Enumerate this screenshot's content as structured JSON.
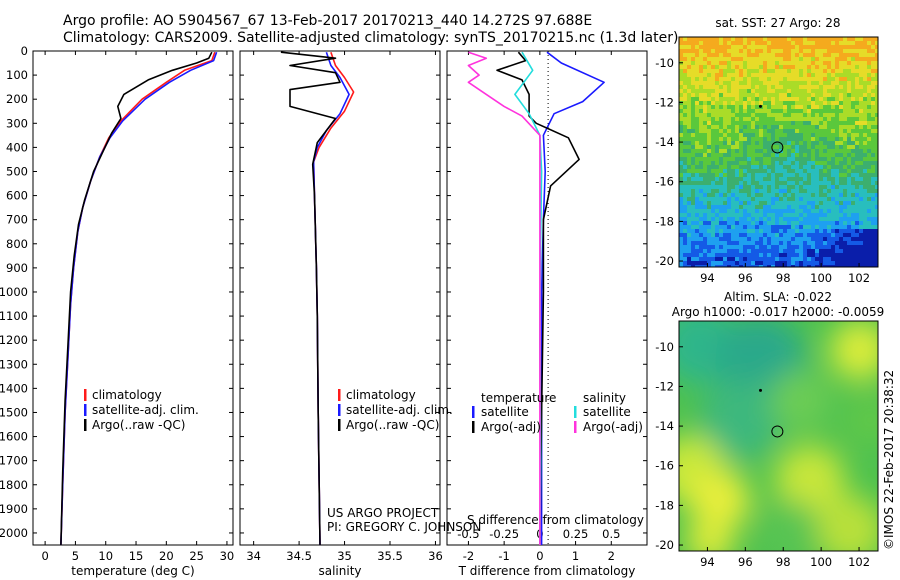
{
  "header": {
    "line1": "Argo profile: AO 5904567_67 13-Feb-2017 20170213_440 14.272S 97.688E",
    "line2": "Climatology: CARS2009. Satellite-adjusted climatology: synTS_20170215.nc (1.3d later)"
  },
  "credit": {
    "project": "US ARGO PROJECT",
    "pi": "PI: GREGORY C. JOHNSON",
    "imos": "©IMOS 22-Feb-2017 20:38:32"
  },
  "colors": {
    "climatology": "#ff1a1a",
    "satellite": "#1a1aff",
    "argo": "#000000",
    "sal_satellite": "#22dddd",
    "sal_argo": "#ff33dd"
  },
  "chart_data": [
    {
      "type": "line",
      "title": "",
      "xlabel": "temperature (deg C)",
      "ylabel": "",
      "xlim": [
        -2,
        31
      ],
      "ylim": [
        2050,
        0
      ],
      "xticks": [
        0,
        5,
        10,
        15,
        20,
        25,
        30
      ],
      "yticks": [
        0,
        100,
        200,
        300,
        400,
        500,
        600,
        700,
        800,
        900,
        1000,
        1100,
        1200,
        1300,
        1400,
        1500,
        1600,
        1700,
        1800,
        1900,
        2000
      ],
      "legend": [
        "climatology",
        "satellite-adj. clim.",
        "Argo(..raw -QC)"
      ],
      "series": [
        {
          "name": "climatology",
          "color": "#ff1a1a",
          "points": [
            [
              28,
              5
            ],
            [
              27.5,
              40
            ],
            [
              23,
              80
            ],
            [
              20,
              130
            ],
            [
              16,
              200
            ],
            [
              12.5,
              290
            ],
            [
              10.5,
              360
            ],
            [
              9,
              440
            ],
            [
              7.5,
              540
            ],
            [
              6.2,
              650
            ],
            [
              5.4,
              750
            ],
            [
              4.7,
              900
            ],
            [
              4.2,
              1050
            ],
            [
              3.8,
              1250
            ],
            [
              3.3,
              1500
            ],
            [
              2.9,
              1800
            ],
            [
              2.6,
              2050
            ]
          ]
        },
        {
          "name": "satellite-adj. clim.",
          "color": "#1a1aff",
          "points": [
            [
              28.3,
              5
            ],
            [
              27.8,
              40
            ],
            [
              24,
              80
            ],
            [
              20.5,
              130
            ],
            [
              16.5,
              200
            ],
            [
              12.8,
              290
            ],
            [
              10.7,
              360
            ],
            [
              9,
              440
            ],
            [
              7.5,
              540
            ],
            [
              6.2,
              650
            ],
            [
              5.4,
              750
            ],
            [
              4.7,
              900
            ],
            [
              4.2,
              1050
            ],
            [
              3.8,
              1250
            ],
            [
              3.3,
              1500
            ],
            [
              2.9,
              1800
            ],
            [
              2.6,
              2050
            ]
          ]
        },
        {
          "name": "Argo(..raw -QC)",
          "color": "#000000",
          "points": [
            [
              27.5,
              5
            ],
            [
              27,
              30
            ],
            [
              25,
              50
            ],
            [
              21,
              80
            ],
            [
              17,
              120
            ],
            [
              13,
              180
            ],
            [
              12,
              230
            ],
            [
              12.5,
              280
            ],
            [
              11,
              340
            ],
            [
              9.5,
              420
            ],
            [
              8,
              500
            ],
            [
              6.5,
              620
            ],
            [
              5.5,
              720
            ],
            [
              4.8,
              850
            ],
            [
              4.2,
              1000
            ],
            [
              3.8,
              1200
            ],
            [
              3.3,
              1450
            ],
            [
              2.9,
              1750
            ],
            [
              2.6,
              2050
            ]
          ]
        }
      ]
    },
    {
      "type": "line",
      "xlabel": "salinity",
      "xlim": [
        33.85,
        36.05
      ],
      "ylim": [
        2050,
        0
      ],
      "xticks": [
        34,
        34.5,
        35,
        35.5,
        36
      ],
      "legend": [
        "climatology",
        "satellite-adj. clim.",
        "Argo(..raw -QC)"
      ],
      "series": [
        {
          "name": "climatology",
          "color": "#ff1a1a",
          "points": [
            [
              34.85,
              5
            ],
            [
              34.9,
              60
            ],
            [
              35.0,
              110
            ],
            [
              35.1,
              170
            ],
            [
              35.0,
              250
            ],
            [
              34.85,
              320
            ],
            [
              34.72,
              400
            ],
            [
              34.66,
              460
            ],
            [
              34.67,
              600
            ],
            [
              34.69,
              900
            ],
            [
              34.7,
              1100
            ],
            [
              34.71,
              1500
            ],
            [
              34.73,
              2050
            ]
          ]
        },
        {
          "name": "satellite-adj. clim.",
          "color": "#1a1aff",
          "points": [
            [
              34.8,
              5
            ],
            [
              34.85,
              60
            ],
            [
              34.95,
              110
            ],
            [
              35.05,
              180
            ],
            [
              34.95,
              260
            ],
            [
              34.8,
              330
            ],
            [
              34.7,
              400
            ],
            [
              34.66,
              460
            ],
            [
              34.67,
              600
            ],
            [
              34.69,
              900
            ],
            [
              34.7,
              1100
            ],
            [
              34.71,
              1500
            ],
            [
              34.73,
              2050
            ]
          ]
        },
        {
          "name": "Argo(..raw -QC)",
          "color": "#000000",
          "points": [
            [
              34.3,
              5
            ],
            [
              34.9,
              30
            ],
            [
              34.4,
              60
            ],
            [
              34.9,
              90
            ],
            [
              34.95,
              130
            ],
            [
              34.4,
              160
            ],
            [
              34.4,
              230
            ],
            [
              34.9,
              280
            ],
            [
              34.7,
              380
            ],
            [
              34.65,
              470
            ],
            [
              34.67,
              600
            ],
            [
              34.69,
              900
            ],
            [
              34.7,
              1100
            ],
            [
              34.71,
              1500
            ],
            [
              34.73,
              2050
            ]
          ]
        }
      ]
    },
    {
      "type": "line",
      "xlabel": "T difference from climatology",
      "xlabel_top": "S difference from climatology",
      "xlim": [
        -2.6,
        3.0
      ],
      "ylim": [
        2050,
        0
      ],
      "xticks": [
        -2,
        -1,
        0,
        1,
        2
      ],
      "xticks_s": [
        "-0.5",
        "-0.25",
        "0",
        "0.25",
        "0.5"
      ],
      "legend_groups": [
        "temperature",
        "salinity"
      ],
      "legend": [
        "satellite",
        "Argo(-adj)",
        "satellite",
        "Argo(-adj)"
      ],
      "series": [
        {
          "name": "temperature satellite",
          "color": "#1a1aff",
          "points": [
            [
              0.2,
              5
            ],
            [
              0.6,
              50
            ],
            [
              1.8,
              130
            ],
            [
              1.2,
              210
            ],
            [
              0.4,
              260
            ],
            [
              0.1,
              350
            ],
            [
              0.15,
              500
            ],
            [
              0.1,
              700
            ],
            [
              0.05,
              1000
            ],
            [
              0.05,
              1500
            ],
            [
              0.05,
              2050
            ]
          ]
        },
        {
          "name": "temperature Argo(-adj)",
          "color": "#000000",
          "points": [
            [
              -0.6,
              5
            ],
            [
              -0.4,
              40
            ],
            [
              -1.2,
              80
            ],
            [
              -0.5,
              120
            ],
            [
              -0.3,
              180
            ],
            [
              -0.3,
              270
            ],
            [
              -0.1,
              300
            ],
            [
              0.8,
              360
            ],
            [
              1.1,
              450
            ],
            [
              0.3,
              560
            ],
            [
              0.1,
              700
            ],
            [
              0.1,
              1000
            ],
            [
              0.05,
              1500
            ],
            [
              0,
              2050
            ]
          ]
        },
        {
          "name": "salinity satellite",
          "color": "#22dddd",
          "points": [
            [
              -0.5,
              5
            ],
            [
              -0.2,
              80
            ],
            [
              -0.7,
              180
            ],
            [
              -0.3,
              260
            ],
            [
              0.0,
              350
            ],
            [
              0.05,
              500
            ],
            [
              0.02,
              800
            ],
            [
              0.0,
              1200
            ],
            [
              0.02,
              1700
            ],
            [
              0.0,
              2050
            ]
          ]
        },
        {
          "name": "salinity Argo(-adj)",
          "color": "#ff33dd",
          "points": [
            [
              -2.0,
              5
            ],
            [
              -1.5,
              30
            ],
            [
              -2.0,
              60
            ],
            [
              -1.7,
              100
            ],
            [
              -2.0,
              130
            ],
            [
              -1.5,
              180
            ],
            [
              -1.0,
              230
            ],
            [
              -0.5,
              270
            ],
            [
              0.0,
              350
            ],
            [
              0.0,
              2050
            ]
          ]
        }
      ]
    },
    {
      "type": "heatmap",
      "title": "sat. SST: 27 Argo: 28",
      "xlim": [
        92.5,
        103
      ],
      "ylim": [
        -20.3,
        -8.7
      ],
      "xticks": [
        94,
        96,
        98,
        100,
        102
      ],
      "yticks": [
        -10,
        -12,
        -14,
        -16,
        -18,
        -20
      ],
      "argo_position": {
        "lon": 97.69,
        "lat": -14.27
      }
    },
    {
      "type": "heatmap",
      "title": "Altim. SLA: -0.022",
      "subtitle": "Argo h1000: -0.017 h2000: -0.0059",
      "xlim": [
        92.5,
        103
      ],
      "ylim": [
        -20.3,
        -8.7
      ],
      "xticks": [
        94,
        96,
        98,
        100,
        102
      ],
      "yticks": [
        -10,
        -12,
        -14,
        -16,
        -18,
        -20
      ],
      "argo_position": {
        "lon": 97.69,
        "lat": -14.27
      }
    }
  ]
}
